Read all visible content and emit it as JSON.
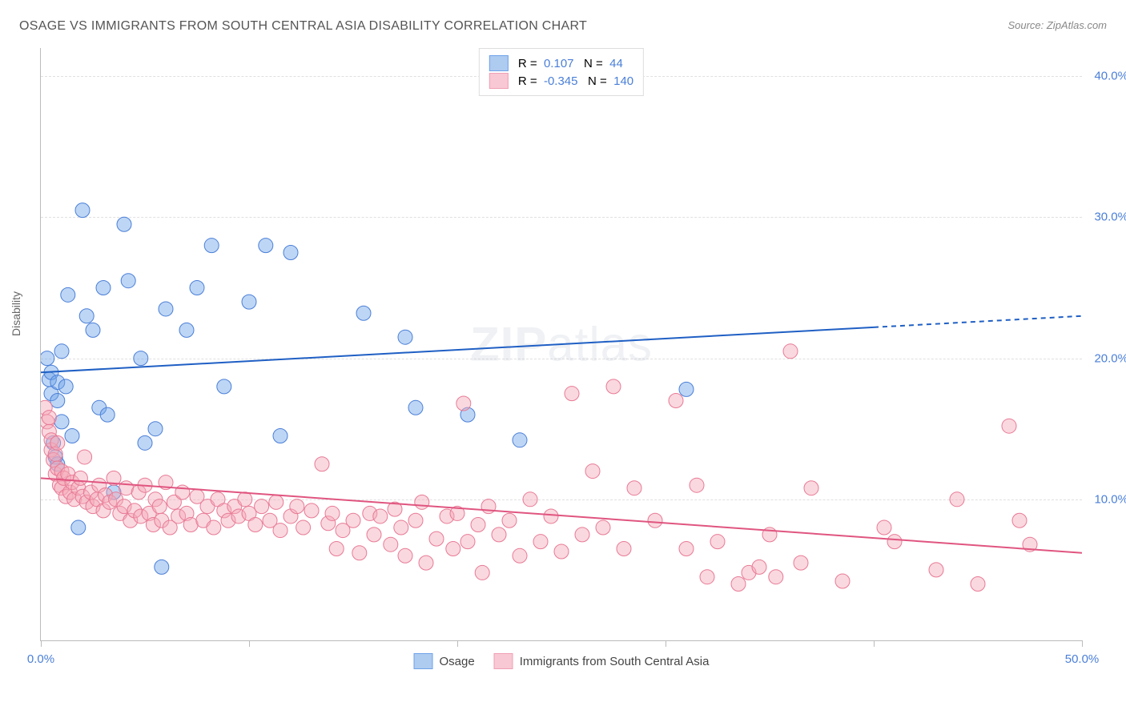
{
  "title": "OSAGE VS IMMIGRANTS FROM SOUTH CENTRAL ASIA DISABILITY CORRELATION CHART",
  "source": "Source: ZipAtlas.com",
  "ylabel": "Disability",
  "watermark_bold": "ZIP",
  "watermark_light": "atlas",
  "chart": {
    "type": "scatter",
    "xlim": [
      0,
      50
    ],
    "ylim": [
      0,
      42
    ],
    "xtick_positions": [
      0,
      10,
      20,
      30,
      40,
      50
    ],
    "xtick_labels": [
      "0.0%",
      "",
      "",
      "",
      "",
      "50.0%"
    ],
    "ytick_positions": [
      10,
      20,
      30,
      40
    ],
    "ytick_labels": [
      "10.0%",
      "20.0%",
      "30.0%",
      "40.0%"
    ],
    "background_color": "#ffffff",
    "grid_color": "#e0e0e0",
    "axis_color": "#bbbbbb",
    "tick_label_color": "#4a7fd8",
    "marker_radius": 9,
    "marker_opacity": 0.45,
    "series": [
      {
        "name": "Osage",
        "color": "#6fa3e8",
        "stroke": "#4a7fd8",
        "trend_color": "#1f5fc4",
        "R": "0.107",
        "N": "44",
        "trend": {
          "x1": 0,
          "y1": 19.0,
          "x2": 50,
          "y2": 23.0,
          "solid_until_x": 40
        },
        "points": [
          [
            0.3,
            20.0
          ],
          [
            0.4,
            18.5
          ],
          [
            0.5,
            17.5
          ],
          [
            0.5,
            19.0
          ],
          [
            0.6,
            14.0
          ],
          [
            0.7,
            13.0
          ],
          [
            0.8,
            17.0
          ],
          [
            0.8,
            18.3
          ],
          [
            0.8,
            12.5
          ],
          [
            1.0,
            15.5
          ],
          [
            1.0,
            20.5
          ],
          [
            1.2,
            18.0
          ],
          [
            1.3,
            24.5
          ],
          [
            1.5,
            14.5
          ],
          [
            1.8,
            8.0
          ],
          [
            2.0,
            30.5
          ],
          [
            2.2,
            23.0
          ],
          [
            2.5,
            22.0
          ],
          [
            2.8,
            16.5
          ],
          [
            3.0,
            25.0
          ],
          [
            3.2,
            16.0
          ],
          [
            3.5,
            10.5
          ],
          [
            4.0,
            29.5
          ],
          [
            4.2,
            25.5
          ],
          [
            4.8,
            20.0
          ],
          [
            5.0,
            14.0
          ],
          [
            5.5,
            15.0
          ],
          [
            5.8,
            5.2
          ],
          [
            6.0,
            23.5
          ],
          [
            7.0,
            22.0
          ],
          [
            7.5,
            25.0
          ],
          [
            8.2,
            28.0
          ],
          [
            8.8,
            18.0
          ],
          [
            10.0,
            24.0
          ],
          [
            10.8,
            28.0
          ],
          [
            11.5,
            14.5
          ],
          [
            12.0,
            27.5
          ],
          [
            15.5,
            23.2
          ],
          [
            17.5,
            21.5
          ],
          [
            18.0,
            16.5
          ],
          [
            20.5,
            16.0
          ],
          [
            23.0,
            14.2
          ],
          [
            31.0,
            17.8
          ]
        ]
      },
      {
        "name": "Immigrants from South Central Asia",
        "color": "#f5a8b8",
        "stroke": "#e87a95",
        "trend_color": "#e05580",
        "R": "-0.345",
        "N": "140",
        "trend": {
          "x1": 0,
          "y1": 11.5,
          "x2": 50,
          "y2": 6.2,
          "solid_until_x": 50
        },
        "points": [
          [
            0.2,
            16.5
          ],
          [
            0.3,
            15.5
          ],
          [
            0.4,
            14.8
          ],
          [
            0.4,
            15.8
          ],
          [
            0.5,
            13.5
          ],
          [
            0.5,
            14.2
          ],
          [
            0.6,
            12.8
          ],
          [
            0.7,
            13.2
          ],
          [
            0.7,
            11.8
          ],
          [
            0.8,
            12.2
          ],
          [
            0.8,
            14.0
          ],
          [
            0.9,
            11.0
          ],
          [
            1.0,
            12.0
          ],
          [
            1.0,
            10.8
          ],
          [
            1.1,
            11.5
          ],
          [
            1.2,
            10.2
          ],
          [
            1.3,
            11.8
          ],
          [
            1.4,
            10.5
          ],
          [
            1.5,
            11.2
          ],
          [
            1.6,
            10.0
          ],
          [
            1.8,
            10.8
          ],
          [
            1.9,
            11.5
          ],
          [
            2.0,
            10.2
          ],
          [
            2.1,
            13.0
          ],
          [
            2.2,
            9.8
          ],
          [
            2.4,
            10.5
          ],
          [
            2.5,
            9.5
          ],
          [
            2.7,
            10.0
          ],
          [
            2.8,
            11.0
          ],
          [
            3.0,
            9.2
          ],
          [
            3.1,
            10.3
          ],
          [
            3.3,
            9.8
          ],
          [
            3.5,
            11.5
          ],
          [
            3.6,
            10.0
          ],
          [
            3.8,
            9.0
          ],
          [
            4.0,
            9.5
          ],
          [
            4.1,
            10.8
          ],
          [
            4.3,
            8.5
          ],
          [
            4.5,
            9.2
          ],
          [
            4.7,
            10.5
          ],
          [
            4.8,
            8.8
          ],
          [
            5.0,
            11.0
          ],
          [
            5.2,
            9.0
          ],
          [
            5.4,
            8.2
          ],
          [
            5.5,
            10.0
          ],
          [
            5.7,
            9.5
          ],
          [
            5.8,
            8.5
          ],
          [
            6.0,
            11.2
          ],
          [
            6.2,
            8.0
          ],
          [
            6.4,
            9.8
          ],
          [
            6.6,
            8.8
          ],
          [
            6.8,
            10.5
          ],
          [
            7.0,
            9.0
          ],
          [
            7.2,
            8.2
          ],
          [
            7.5,
            10.2
          ],
          [
            7.8,
            8.5
          ],
          [
            8.0,
            9.5
          ],
          [
            8.3,
            8.0
          ],
          [
            8.5,
            10.0
          ],
          [
            8.8,
            9.2
          ],
          [
            9.0,
            8.5
          ],
          [
            9.3,
            9.5
          ],
          [
            9.5,
            8.8
          ],
          [
            9.8,
            10.0
          ],
          [
            10.0,
            9.0
          ],
          [
            10.3,
            8.2
          ],
          [
            10.6,
            9.5
          ],
          [
            11.0,
            8.5
          ],
          [
            11.3,
            9.8
          ],
          [
            11.5,
            7.8
          ],
          [
            12.0,
            8.8
          ],
          [
            12.3,
            9.5
          ],
          [
            12.6,
            8.0
          ],
          [
            13.0,
            9.2
          ],
          [
            13.5,
            12.5
          ],
          [
            13.8,
            8.3
          ],
          [
            14.0,
            9.0
          ],
          [
            14.2,
            6.5
          ],
          [
            14.5,
            7.8
          ],
          [
            15.0,
            8.5
          ],
          [
            15.3,
            6.2
          ],
          [
            15.8,
            9.0
          ],
          [
            16.0,
            7.5
          ],
          [
            16.3,
            8.8
          ],
          [
            16.8,
            6.8
          ],
          [
            17.0,
            9.3
          ],
          [
            17.3,
            8.0
          ],
          [
            17.5,
            6.0
          ],
          [
            18.0,
            8.5
          ],
          [
            18.3,
            9.8
          ],
          [
            18.5,
            5.5
          ],
          [
            19.0,
            7.2
          ],
          [
            19.5,
            8.8
          ],
          [
            19.8,
            6.5
          ],
          [
            20.0,
            9.0
          ],
          [
            20.3,
            16.8
          ],
          [
            20.5,
            7.0
          ],
          [
            21.0,
            8.2
          ],
          [
            21.2,
            4.8
          ],
          [
            21.5,
            9.5
          ],
          [
            22.0,
            7.5
          ],
          [
            22.5,
            8.5
          ],
          [
            23.0,
            6.0
          ],
          [
            23.5,
            10.0
          ],
          [
            24.0,
            7.0
          ],
          [
            24.5,
            8.8
          ],
          [
            25.0,
            6.3
          ],
          [
            25.5,
            17.5
          ],
          [
            26.0,
            7.5
          ],
          [
            26.5,
            12.0
          ],
          [
            27.0,
            8.0
          ],
          [
            27.5,
            18.0
          ],
          [
            28.0,
            6.5
          ],
          [
            28.5,
            10.8
          ],
          [
            29.5,
            8.5
          ],
          [
            30.5,
            17.0
          ],
          [
            31.0,
            6.5
          ],
          [
            31.5,
            11.0
          ],
          [
            32.0,
            4.5
          ],
          [
            32.5,
            7.0
          ],
          [
            33.5,
            4.0
          ],
          [
            34.0,
            4.8
          ],
          [
            34.5,
            5.2
          ],
          [
            35.0,
            7.5
          ],
          [
            35.3,
            4.5
          ],
          [
            36.0,
            20.5
          ],
          [
            36.5,
            5.5
          ],
          [
            37.0,
            10.8
          ],
          [
            38.5,
            4.2
          ],
          [
            40.5,
            8.0
          ],
          [
            41.0,
            7.0
          ],
          [
            43.0,
            5.0
          ],
          [
            44.0,
            10.0
          ],
          [
            45.0,
            4.0
          ],
          [
            46.5,
            15.2
          ],
          [
            47.0,
            8.5
          ],
          [
            47.5,
            6.8
          ]
        ]
      }
    ],
    "legend_bottom": [
      {
        "label": "Osage",
        "fill": "#aecbf0",
        "stroke": "#6fa3e8"
      },
      {
        "label": "Immigrants from South Central Asia",
        "fill": "#f8c8d4",
        "stroke": "#f0a0b5"
      }
    ],
    "legend_top_stat_color": "#4a7fd8"
  }
}
